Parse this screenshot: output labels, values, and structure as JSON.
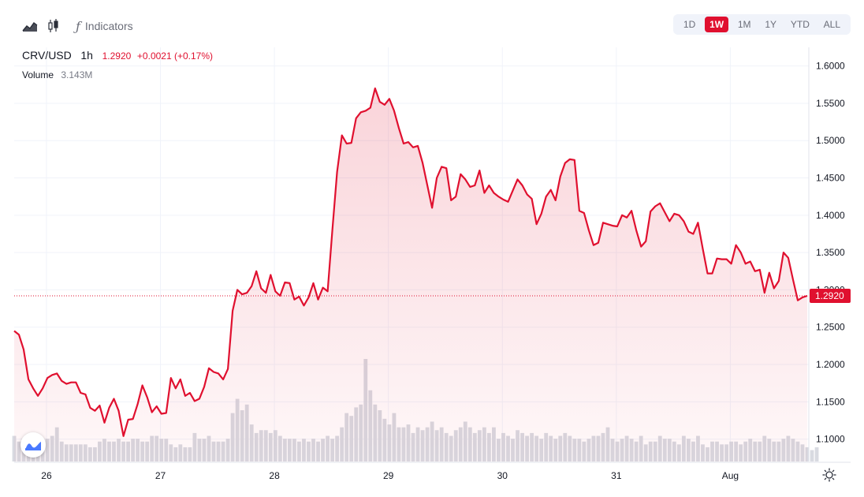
{
  "toolbar": {
    "indicators_label": "Indicators",
    "ranges": [
      "1D",
      "1W",
      "1M",
      "1Y",
      "YTD",
      "ALL"
    ],
    "active_range": "1W"
  },
  "legend": {
    "symbol": "CRV/USD",
    "interval": "1h",
    "price": "1.2920",
    "change": "+0.0021 (+0.17%)",
    "volume_label": "Volume",
    "volume_value": "3.143M"
  },
  "colors": {
    "line": "#e0102f",
    "volume": "#d1d4dc",
    "accent": "#e0102f"
  },
  "icons": [
    "area-chart-icon",
    "candlestick-icon",
    "fx-icon",
    "tradingview-logo-icon",
    "settings-sun-icon"
  ],
  "chart_data": {
    "type": "area",
    "symbol": "CRV/USD",
    "interval": "1h",
    "ylim": [
      1.07,
      1.625
    ],
    "y_ticks": [
      "1.1000",
      "1.1500",
      "1.2000",
      "1.2500",
      "1.3000",
      "1.3500",
      "1.4000",
      "1.4500",
      "1.5000",
      "1.5500",
      "1.6000"
    ],
    "x_ticks": [
      "26",
      "27",
      "28",
      "29",
      "30",
      "31",
      "Aug"
    ],
    "last_price": 1.292,
    "last_price_label": "1.2920",
    "series": [
      {
        "values": [
          1.245,
          1.24,
          1.22,
          1.18,
          1.168,
          1.158,
          1.168,
          1.182,
          1.186,
          1.188,
          1.178,
          1.174,
          1.176,
          1.176,
          1.162,
          1.16,
          1.142,
          1.138,
          1.145,
          1.122,
          1.142,
          1.154,
          1.138,
          1.104,
          1.126,
          1.127,
          1.147,
          1.172,
          1.156,
          1.136,
          1.144,
          1.134,
          1.135,
          1.182,
          1.168,
          1.18,
          1.158,
          1.162,
          1.151,
          1.154,
          1.17,
          1.195,
          1.19,
          1.188,
          1.18,
          1.194,
          1.272,
          1.3,
          1.294,
          1.296,
          1.305,
          1.325,
          1.302,
          1.296,
          1.32,
          1.298,
          1.292,
          1.31,
          1.309,
          1.287,
          1.291,
          1.279,
          1.29,
          1.309,
          1.287,
          1.303,
          1.298,
          1.38,
          1.458,
          1.507,
          1.496,
          1.497,
          1.53,
          1.538,
          1.54,
          1.544,
          1.57,
          1.552,
          1.548,
          1.556,
          1.54,
          1.517,
          1.496,
          1.498,
          1.491,
          1.493,
          1.47,
          1.44,
          1.41,
          1.45,
          1.465,
          1.463,
          1.42,
          1.425,
          1.455,
          1.448,
          1.438,
          1.44,
          1.46,
          1.43,
          1.44,
          1.43,
          1.425,
          1.421,
          1.418,
          1.433,
          1.448,
          1.44,
          1.428,
          1.422,
          1.388,
          1.402,
          1.425,
          1.434,
          1.42,
          1.452,
          1.47,
          1.475,
          1.474,
          1.406,
          1.403,
          1.38,
          1.36,
          1.363,
          1.39,
          1.388,
          1.386,
          1.385,
          1.4,
          1.397,
          1.406,
          1.38,
          1.358,
          1.365,
          1.405,
          1.412,
          1.416,
          1.404,
          1.392,
          1.402,
          1.4,
          1.392,
          1.378,
          1.375,
          1.39,
          1.355,
          1.322,
          1.322,
          1.342,
          1.341,
          1.341,
          1.335,
          1.36,
          1.35,
          1.335,
          1.338,
          1.325,
          1.327,
          1.296,
          1.323,
          1.302,
          1.312,
          1.35,
          1.343,
          1.314,
          1.286,
          1.29,
          1.292
        ]
      }
    ],
    "volume": [
      9,
      7,
      8,
      6,
      5,
      6,
      7,
      8,
      9,
      12,
      7,
      6,
      6,
      6,
      6,
      6,
      5,
      5,
      7,
      8,
      7,
      7,
      8,
      7,
      7,
      8,
      8,
      7,
      7,
      9,
      9,
      8,
      8,
      6,
      5,
      6,
      5,
      5,
      10,
      8,
      8,
      9,
      7,
      7,
      7,
      8,
      17,
      22,
      18,
      20,
      13,
      10,
      11,
      11,
      10,
      11,
      9,
      8,
      8,
      8,
      7,
      8,
      7,
      8,
      7,
      8,
      9,
      8,
      9,
      12,
      17,
      16,
      19,
      20,
      36,
      25,
      20,
      18,
      15,
      13,
      17,
      12,
      12,
      13,
      10,
      12,
      11,
      12,
      14,
      11,
      12,
      10,
      9,
      11,
      12,
      14,
      12,
      10,
      11,
      12,
      10,
      12,
      8,
      10,
      9,
      8,
      11,
      10,
      9,
      10,
      9,
      8,
      10,
      9,
      8,
      9,
      10,
      9,
      8,
      8,
      7,
      8,
      9,
      9,
      10,
      12,
      8,
      7,
      8,
      9,
      8,
      7,
      9,
      6,
      7,
      7,
      9,
      8,
      8,
      7,
      6,
      9,
      8,
      7,
      9,
      6,
      5,
      7,
      7,
      6,
      6,
      7,
      7,
      6,
      7,
      8,
      7,
      7,
      9,
      8,
      7,
      7,
      8,
      9,
      8,
      7,
      6,
      5,
      4,
      5
    ]
  }
}
